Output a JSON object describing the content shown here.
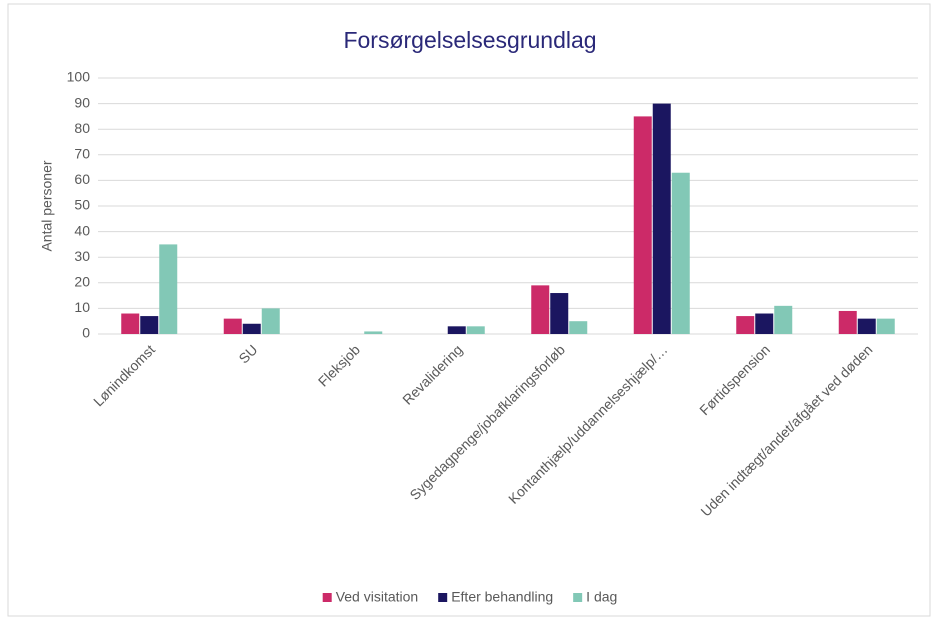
{
  "chart_data": {
    "type": "bar",
    "title": "Forsørgelselsesgrundlag",
    "y_label": "Antal personer",
    "categories": [
      "Lønindkomst",
      "SU",
      "Fleksjob",
      "Revalidering",
      "Sygedagpenge/jobafklaringsforløb",
      "Kontanthjælp/uddannelseshjælp/…",
      "Førtidspension",
      "Uden indtægt/andet/afgået ved døden"
    ],
    "series": [
      {
        "name": "Ved visitation",
        "color": "#cc2a68",
        "values": [
          8,
          6,
          0,
          0,
          19,
          85,
          7,
          9
        ]
      },
      {
        "name": "Efter behandling",
        "color": "#1b1660",
        "values": [
          7,
          4,
          0,
          3,
          16,
          90,
          8,
          6
        ]
      },
      {
        "name": "I dag",
        "color": "#82c8b6",
        "values": [
          35,
          10,
          1,
          3,
          5,
          63,
          11,
          6
        ]
      }
    ],
    "ylim": [
      0,
      100
    ],
    "yticks": [
      0,
      10,
      20,
      30,
      40,
      50,
      60,
      70,
      80,
      90,
      100
    ],
    "grid": true,
    "legend": "bottom"
  }
}
